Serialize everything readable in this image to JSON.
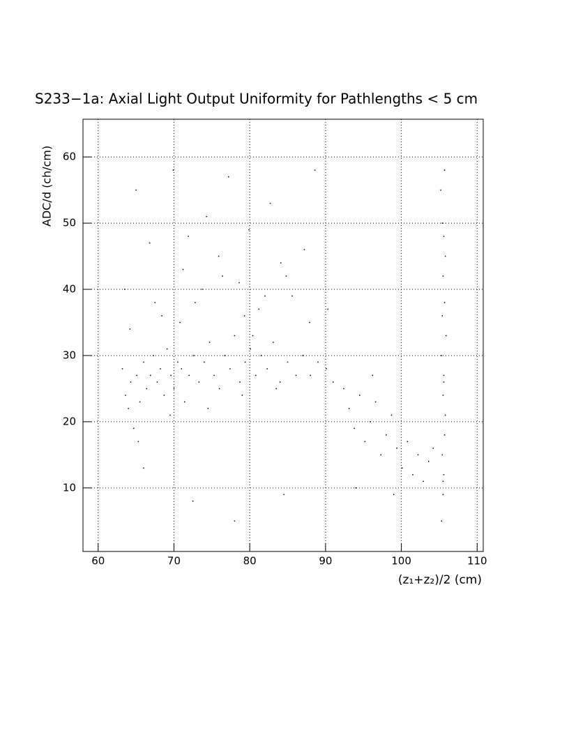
{
  "chart_data": {
    "type": "scatter",
    "title": "S233−1a: Axial Light Output Uniformity for Pathlengths < 5 cm",
    "xlabel": "(z₁+z₂)/2 (cm)",
    "ylabel": "ADC/d (ch/cm)",
    "xlim": [
      58,
      110.8
    ],
    "ylim": [
      0.4,
      65.7
    ],
    "xticks": [
      60,
      70,
      80,
      90,
      100,
      110
    ],
    "yticks": [
      10,
      20,
      30,
      40,
      50,
      60
    ],
    "grid": true,
    "color": "#000000",
    "x": [
      63.2,
      63.6,
      64.0,
      64.3,
      64.7,
      65.1,
      65.5,
      66.0,
      66.4,
      66.9,
      67.3,
      67.8,
      68.2,
      68.7,
      69.1,
      69.6,
      70.0,
      70.5,
      71.0,
      71.4,
      72.0,
      72.6,
      73.3,
      74.0,
      74.7,
      75.3,
      76.0,
      76.7,
      77.4,
      78.0,
      78.7,
      79.4,
      80.1,
      80.8,
      81.5,
      82.3,
      83.1,
      84.0,
      85.0,
      86.1,
      87.0,
      88.0,
      89.0,
      90.1,
      91.0,
      65.3,
      69.5,
      74.5,
      79.0,
      83.5,
      63.5,
      65.0,
      66.8,
      68.4,
      69.9,
      71.2,
      72.8,
      74.3,
      75.9,
      77.2,
      78.6,
      79.9,
      81.2,
      82.7,
      84.1,
      85.6,
      87.2,
      88.6,
      64.2,
      67.5,
      70.8,
      73.7,
      76.4,
      79.3,
      82.0,
      84.8,
      87.9,
      90.3,
      71.9,
      80.4,
      92.4,
      93.1,
      93.8,
      94.5,
      95.2,
      95.9,
      96.6,
      97.3,
      98.0,
      98.7,
      99.4,
      100.1,
      100.8,
      101.5,
      102.2,
      102.9,
      103.6,
      104.2,
      96.2,
      99.0,
      105.3,
      105.5,
      105.6,
      105.4,
      105.7,
      105.8,
      105.5,
      105.6,
      105.3,
      105.9,
      105.4,
      105.7,
      105.5,
      105.8,
      105.6,
      105.4,
      105.2,
      105.7,
      105.5,
      105.6,
      72.5,
      78.0,
      84.5,
      66.0,
      94.0
    ],
    "y": [
      28,
      24,
      22,
      26,
      19,
      27,
      23,
      29,
      25,
      27,
      30,
      26,
      28,
      24,
      31,
      27,
      25,
      29,
      28,
      23,
      27,
      30,
      26,
      29,
      32,
      27,
      25,
      30,
      28,
      33,
      26,
      29,
      31,
      27,
      30,
      28,
      32,
      26,
      29,
      27,
      30,
      27,
      29,
      28,
      26,
      17,
      21,
      22,
      24,
      25,
      40,
      55,
      47,
      36,
      58,
      43,
      38,
      51,
      45,
      57,
      41,
      49,
      37,
      53,
      44,
      39,
      46,
      58,
      34,
      38,
      35,
      40,
      42,
      36,
      39,
      42,
      35,
      37,
      48,
      33,
      25,
      22,
      19,
      24,
      17,
      20,
      23,
      15,
      18,
      21,
      16,
      13,
      17,
      12,
      15,
      11,
      14,
      16,
      27,
      9,
      5,
      9,
      12,
      15,
      18,
      21,
      24,
      27,
      30,
      33,
      36,
      38,
      42,
      45,
      48,
      50,
      55,
      58,
      11,
      26,
      8,
      5,
      9,
      13,
      10
    ]
  }
}
